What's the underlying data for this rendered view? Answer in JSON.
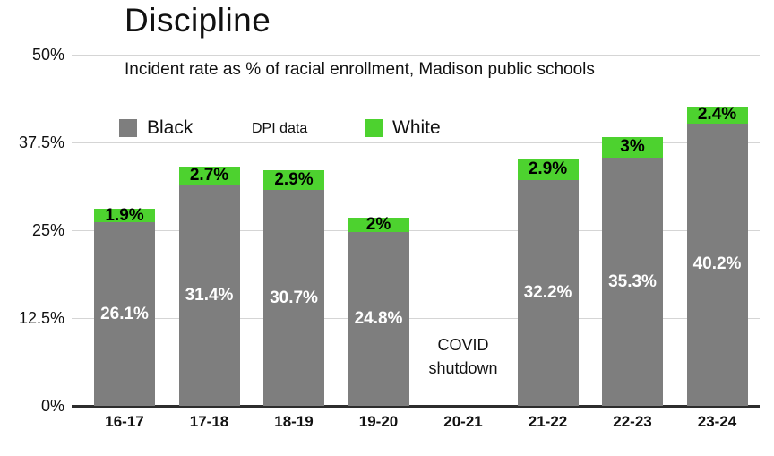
{
  "title": "Discipline",
  "subtitle": "Incident rate as % of racial enrollment, Madison public schools",
  "legend": {
    "black_label": "Black",
    "note": "DPI data",
    "white_label": "White"
  },
  "annotation": {
    "line1": "COVID",
    "line2": "shutdown"
  },
  "colors": {
    "black_series": "#7e7e7e",
    "white_series": "#4dd22f",
    "gridline": "#d5d5d5",
    "axis": "#2d2d2d",
    "bar_label_black_segment": "#ffffff",
    "bar_label_white_segment": "#000000"
  },
  "chart_data": {
    "type": "bar",
    "stacked": true,
    "title": "Discipline",
    "subtitle": "Incident rate as % of racial enrollment, Madison public schools",
    "source_note": "DPI data",
    "categories": [
      "16-17",
      "17-18",
      "18-19",
      "19-20",
      "20-21",
      "21-22",
      "22-23",
      "23-24"
    ],
    "series": [
      {
        "name": "Black",
        "color": "#7e7e7e",
        "values": [
          26.1,
          31.4,
          30.7,
          24.8,
          null,
          32.2,
          35.3,
          40.2
        ],
        "labels": [
          "26.1%",
          "31.4%",
          "30.7%",
          "24.8%",
          "",
          "32.2%",
          "35.3%",
          "40.2%"
        ]
      },
      {
        "name": "White",
        "color": "#4dd22f",
        "values": [
          1.9,
          2.7,
          2.9,
          2.0,
          null,
          2.9,
          3.0,
          2.4
        ],
        "labels": [
          "1.9%",
          "2.7%",
          "2.9%",
          "2%",
          "",
          "2.9%",
          "3%",
          "2.4%"
        ]
      }
    ],
    "missing_category": "20-21",
    "missing_reason": "COVID shutdown",
    "xlabel": "",
    "ylabel": "",
    "y_ticks": [
      "0%",
      "12.5%",
      "25%",
      "37.5%",
      "50%"
    ],
    "y_tick_values": [
      0,
      12.5,
      25,
      37.5,
      50
    ],
    "ylim": [
      0,
      50
    ],
    "grid": true,
    "legend_position": "top-left"
  }
}
